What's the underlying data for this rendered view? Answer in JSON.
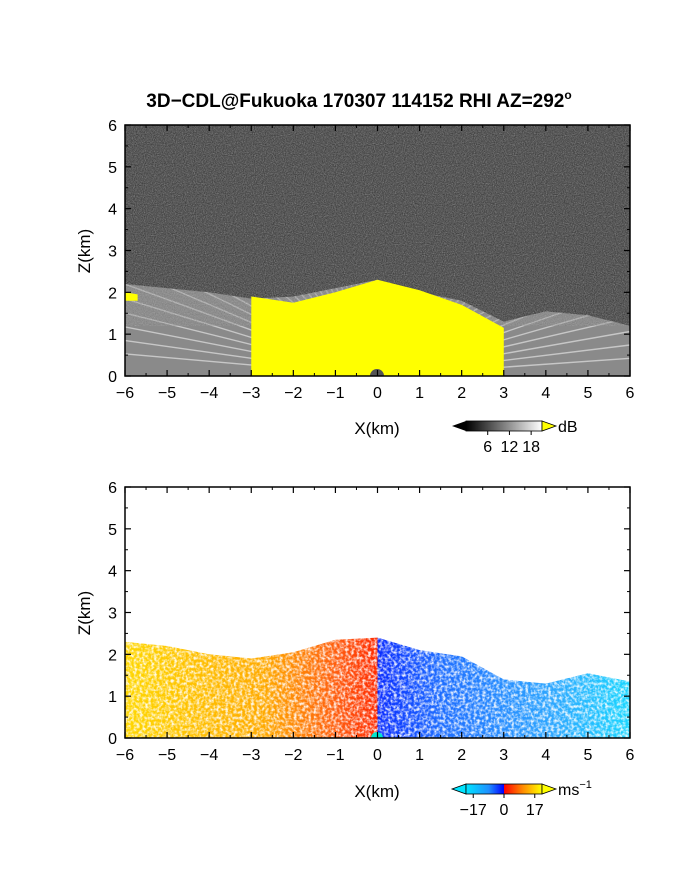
{
  "figure": {
    "title": "3D−CDL@Fukuoka 170307 114152 RHI AZ=292",
    "title_superscript": "o"
  },
  "chart_data": [
    {
      "type": "heatmap",
      "name": "backscatter",
      "xlabel": "X(km)",
      "ylabel": "Z(km)",
      "xlim": [
        -6,
        6
      ],
      "ylim": [
        0,
        6
      ],
      "xticks": [
        "−6",
        "−5",
        "−4",
        "−3",
        "−2",
        "−1",
        "0",
        "1",
        "2",
        "3",
        "4",
        "5",
        "6"
      ],
      "yticks": [
        "0",
        "1",
        "2",
        "3",
        "4",
        "5",
        "6"
      ],
      "colorbar": {
        "unit": "dB",
        "ticks": [
          "6",
          "12",
          "18"
        ],
        "tick_values": [
          6,
          12,
          18
        ],
        "range": [
          0,
          21
        ],
        "colormap": [
          "#000000",
          "#ffffff"
        ],
        "over_color": "#ffff00"
      },
      "noise_color": "#3a3a3a",
      "signal_top_km": [
        {
          "x": -6.0,
          "z": 2.2
        },
        {
          "x": -5.0,
          "z": 2.1
        },
        {
          "x": -4.0,
          "z": 2.0
        },
        {
          "x": -3.0,
          "z": 1.85
        },
        {
          "x": -2.0,
          "z": 1.9
        },
        {
          "x": -1.0,
          "z": 2.1
        },
        {
          "x": 0.0,
          "z": 2.3
        },
        {
          "x": 1.0,
          "z": 2.0
        },
        {
          "x": 2.0,
          "z": 1.8
        },
        {
          "x": 3.0,
          "z": 1.3
        },
        {
          "x": 4.0,
          "z": 1.55
        },
        {
          "x": 5.0,
          "z": 1.45
        },
        {
          "x": 6.0,
          "z": 1.2
        }
      ],
      "saturated_top_km": [
        {
          "x": -3.0,
          "z": 1.9
        },
        {
          "x": -2.0,
          "z": 1.75
        },
        {
          "x": -1.0,
          "z": 2.0
        },
        {
          "x": 0.0,
          "z": 2.3
        },
        {
          "x": 1.0,
          "z": 2.05
        },
        {
          "x": 2.0,
          "z": 1.7
        },
        {
          "x": 3.0,
          "z": 1.15
        }
      ]
    },
    {
      "type": "heatmap",
      "name": "doppler_velocity",
      "xlabel": "X(km)",
      "ylabel": "Z(km)",
      "xlim": [
        -6,
        6
      ],
      "ylim": [
        0,
        6
      ],
      "xticks": [
        "−6",
        "−5",
        "−4",
        "−3",
        "−2",
        "−1",
        "0",
        "1",
        "2",
        "3",
        "4",
        "5",
        "6"
      ],
      "yticks": [
        "0",
        "1",
        "2",
        "3",
        "4",
        "5",
        "6"
      ],
      "colorbar": {
        "unit": "ms",
        "unit_superscript": "−1",
        "ticks": [
          "−17",
          "0",
          "17"
        ],
        "tick_values": [
          -17,
          0,
          17
        ],
        "range": [
          -21,
          21
        ],
        "colormap": [
          "#00e5ff",
          "#1f8fff",
          "#0000ff",
          "#ff0000",
          "#ff8c00",
          "#ffff00"
        ]
      },
      "velocity_top_km": [
        {
          "x": -6.0,
          "z": 2.3
        },
        {
          "x": -5.0,
          "z": 2.2
        },
        {
          "x": -4.0,
          "z": 2.0
        },
        {
          "x": -3.0,
          "z": 1.9
        },
        {
          "x": -2.0,
          "z": 2.05
        },
        {
          "x": -1.0,
          "z": 2.35
        },
        {
          "x": 0.0,
          "z": 2.4
        },
        {
          "x": 1.0,
          "z": 2.1
        },
        {
          "x": 2.0,
          "z": 1.95
        },
        {
          "x": 3.0,
          "z": 1.4
        },
        {
          "x": 4.0,
          "z": 1.3
        },
        {
          "x": 5.0,
          "z": 1.55
        },
        {
          "x": 6.0,
          "z": 1.35
        }
      ],
      "velocity_samples_ms": [
        {
          "x": -6.0,
          "v": 17
        },
        {
          "x": -3.0,
          "v": 14
        },
        {
          "x": -1.0,
          "v": 8
        },
        {
          "x": -0.1,
          "v": 4
        },
        {
          "x": 0.1,
          "v": -4
        },
        {
          "x": 1.0,
          "v": -10
        },
        {
          "x": 3.0,
          "v": -14
        },
        {
          "x": 6.0,
          "v": -19
        }
      ]
    }
  ]
}
